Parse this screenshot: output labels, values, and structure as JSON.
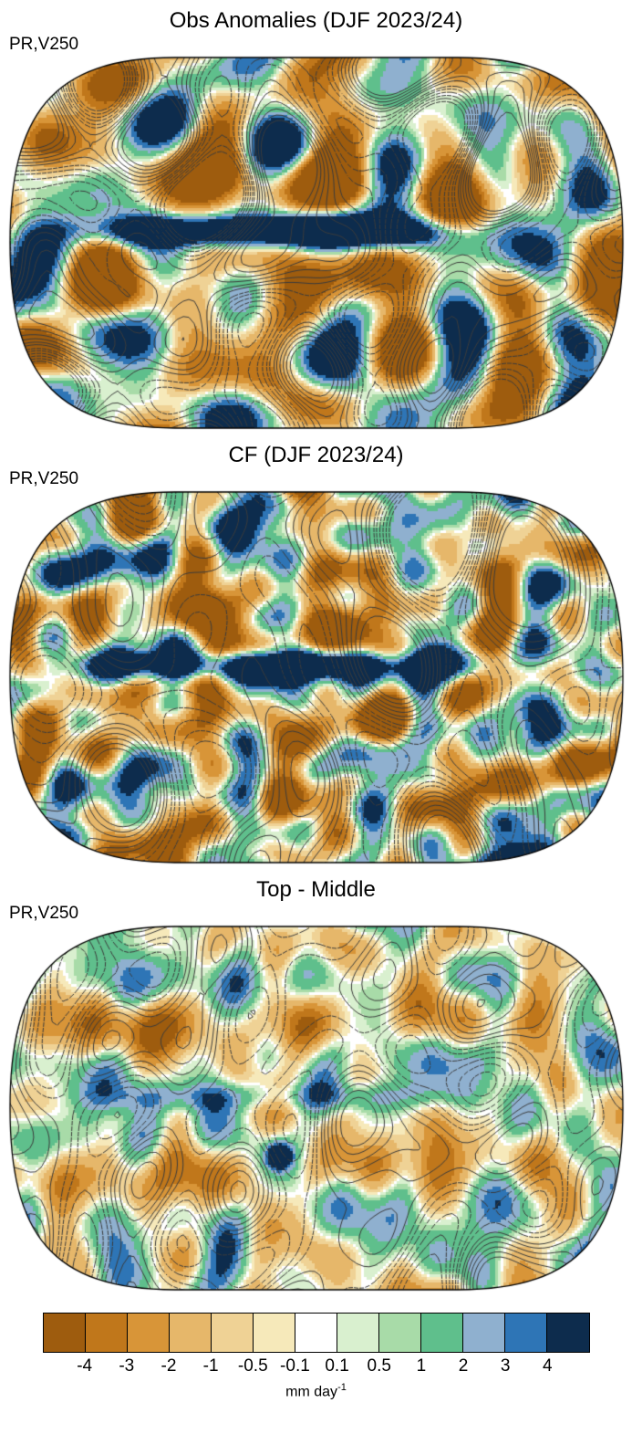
{
  "figure": {
    "panels": [
      {
        "title": "Obs Anomalies (DJF 2023/24)",
        "field_label": "PR,V250"
      },
      {
        "title": "CF (DJF 2023/24)",
        "field_label": "PR,V250"
      },
      {
        "title": "Top - Middle",
        "field_label": "PR,V250"
      }
    ],
    "colorbar": {
      "tick_labels": [
        "-4",
        "-3",
        "-2",
        "-1",
        "-0.5",
        "-0.1",
        "0.1",
        "0.5",
        "1",
        "2",
        "3",
        "4"
      ],
      "unit": "mm day",
      "unit_exponent": "-1",
      "colors": [
        "#9e5c0e",
        "#c0771b",
        "#d89538",
        "#e6b76a",
        "#efd295",
        "#f6e9ba",
        "#ffffff",
        "#d9f0cf",
        "#a8dba8",
        "#5fbf8c",
        "#8fb0cf",
        "#2e75b6",
        "#0d2c4d"
      ],
      "levels": [
        -4,
        -3,
        -2,
        -1,
        -0.5,
        -0.1,
        0.1,
        0.5,
        1,
        2,
        3,
        4
      ],
      "shading_variable": "PR (precipitation anomaly)",
      "contour_variable": "V250 (contours; negative dashed)"
    }
  }
}
